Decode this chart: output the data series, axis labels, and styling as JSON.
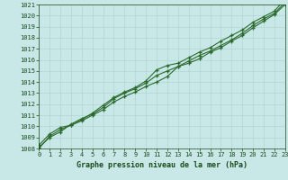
{
  "x": [
    0,
    1,
    2,
    3,
    4,
    5,
    6,
    7,
    8,
    9,
    10,
    11,
    12,
    13,
    14,
    15,
    16,
    17,
    18,
    19,
    20,
    21,
    22,
    23
  ],
  "line1": [
    1008.0,
    1009.1,
    1009.7,
    1010.1,
    1010.5,
    1011.0,
    1011.5,
    1012.2,
    1012.7,
    1013.1,
    1013.6,
    1014.0,
    1014.5,
    1015.4,
    1015.7,
    1016.1,
    1016.7,
    1017.1,
    1017.7,
    1018.2,
    1018.9,
    1019.5,
    1020.1,
    1021.0
  ],
  "line2": [
    1008.1,
    1009.0,
    1009.5,
    1010.2,
    1010.7,
    1011.1,
    1011.7,
    1012.5,
    1013.0,
    1013.4,
    1013.9,
    1014.6,
    1015.0,
    1015.4,
    1015.9,
    1016.4,
    1016.8,
    1017.3,
    1017.8,
    1018.4,
    1019.1,
    1019.7,
    1020.2,
    1021.2
  ],
  "line3": [
    1008.3,
    1009.3,
    1009.9,
    1010.1,
    1010.6,
    1011.2,
    1011.9,
    1012.6,
    1013.1,
    1013.5,
    1014.1,
    1015.1,
    1015.5,
    1015.7,
    1016.2,
    1016.7,
    1017.1,
    1017.7,
    1018.2,
    1018.7,
    1019.4,
    1019.9,
    1020.4,
    1021.5
  ],
  "line_color": "#2d6a2d",
  "marker_color": "#2d6a2d",
  "bg_color": "#c8e8e8",
  "grid_color": "#b0d4d4",
  "text_color": "#1a4a1a",
  "title": "Graphe pression niveau de la mer (hPa)",
  "ylim_min": 1008,
  "ylim_max": 1021,
  "xlim_min": 0,
  "xlim_max": 23,
  "yticks": [
    1008,
    1009,
    1010,
    1011,
    1012,
    1013,
    1014,
    1015,
    1016,
    1017,
    1018,
    1019,
    1020,
    1021
  ],
  "xticks": [
    0,
    1,
    2,
    3,
    4,
    5,
    6,
    7,
    8,
    9,
    10,
    11,
    12,
    13,
    14,
    15,
    16,
    17,
    18,
    19,
    20,
    21,
    22,
    23
  ],
  "tick_fontsize": 5.0,
  "xlabel_fontsize": 6.0
}
